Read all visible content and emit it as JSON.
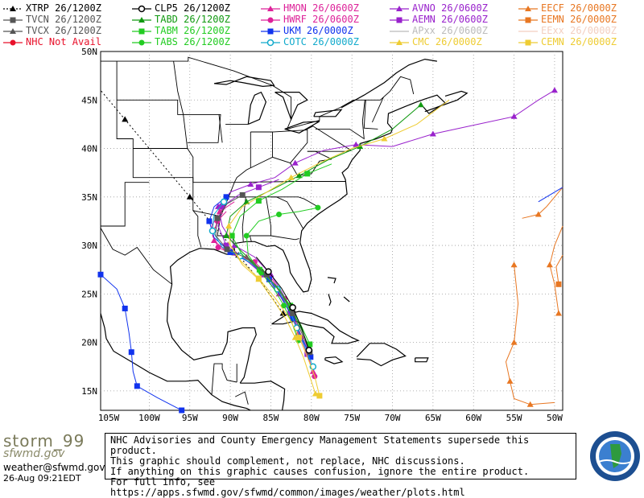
{
  "legend": [
    {
      "label": "XTRP 26/1200Z",
      "color": "#000000",
      "marker": "triangle",
      "dashed": true
    },
    {
      "label": "TVCN 26/1200Z",
      "color": "#555555",
      "marker": "square"
    },
    {
      "label": "TVCX 26/1200Z",
      "color": "#555555",
      "marker": "triangle"
    },
    {
      "label": "NHC Not Avail",
      "color": "#e8102a",
      "marker": "circle"
    },
    {
      "label": "CLP5 26/1200Z",
      "color": "#000000",
      "marker": "circle-open"
    },
    {
      "label": "TABD 26/1200Z",
      "color": "#119911",
      "marker": "triangle"
    },
    {
      "label": "TABM 26/1200Z",
      "color": "#22cc22",
      "marker": "square"
    },
    {
      "label": "TABS 26/1200Z",
      "color": "#22cc22",
      "marker": "circle"
    },
    {
      "label": "HMON 26/0600Z",
      "color": "#dd2299",
      "marker": "triangle"
    },
    {
      "label": "HWRF 26/0600Z",
      "color": "#dd2299",
      "marker": "circle"
    },
    {
      "label": "UKM 26/0000Z",
      "color": "#1133ee",
      "marker": "square"
    },
    {
      "label": "COTC 26/0000Z",
      "color": "#11aacc",
      "marker": "circle-open"
    },
    {
      "label": "AVNO 26/0600Z",
      "color": "#9922cc",
      "marker": "triangle"
    },
    {
      "label": "AEMN 26/0600Z",
      "color": "#9922cc",
      "marker": "square"
    },
    {
      "label": "APxx 26/0600Z",
      "color": "#bbbbbb",
      "marker": "line"
    },
    {
      "label": "CMC 26/0000Z",
      "color": "#eecc33",
      "marker": "triangle"
    },
    {
      "label": "EECF 26/0000Z",
      "color": "#e87722",
      "marker": "triangle"
    },
    {
      "label": "EEMN 26/0000Z",
      "color": "#e87722",
      "marker": "square"
    },
    {
      "label": "EExx 26/0000Z",
      "color": "#f3cfc0",
      "marker": "line"
    },
    {
      "label": "CEMN 26/0000Z",
      "color": "#eecc33",
      "marker": "square"
    }
  ],
  "map": {
    "lat_labels": [
      "50N",
      "45N",
      "40N",
      "35N",
      "30N",
      "25N",
      "20N",
      "15N"
    ],
    "lon_labels": [
      "105W",
      "100W",
      "95W",
      "90W",
      "85W",
      "80W",
      "75W",
      "70W",
      "65W",
      "60W",
      "55W",
      "50W"
    ],
    "lat_range": [
      13,
      50
    ],
    "lon_range": [
      -106,
      -49
    ]
  },
  "footer": {
    "brand": "storm_99",
    "brand_sub": "sfwmd.gov",
    "email": "weather@sfwmd.gov",
    "timestamp": "26-Aug 09:21EDT",
    "notice_lines": [
      "NHC Advisories and County Emergency Management Statements supersede this product.",
      "This graphic should complement, not replace, NHC discussions.",
      "If anything on this graphic causes confusion, ignore the entire product.",
      "For full info, see  https://apps.sfwmd.gov/sfwmd/common/images/weather/plots.html"
    ],
    "logo_text": "SOUTH FLORIDA WATER MANAGEMENT DISTRICT"
  }
}
